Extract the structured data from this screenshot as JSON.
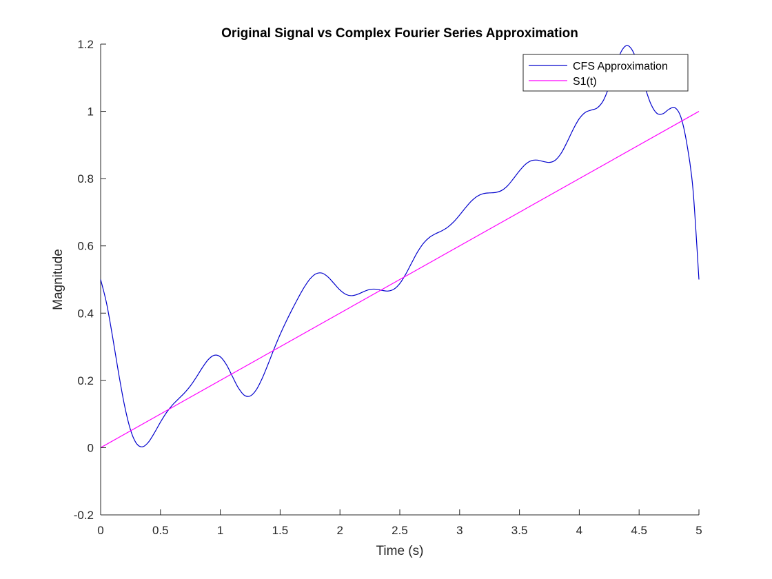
{
  "chart_data": {
    "type": "line",
    "title": "Original Signal vs Complex Fourier Series Approximation",
    "xlabel": "Time (s)",
    "ylabel": "Magnitude",
    "xlim": [
      0,
      5
    ],
    "ylim": [
      -0.2,
      1.2
    ],
    "x_ticks": [
      0,
      0.5,
      1,
      1.5,
      2,
      2.5,
      3,
      3.5,
      4,
      4.5,
      5
    ],
    "x_tick_labels": [
      "0",
      "0.5",
      "1",
      "1.5",
      "2",
      "2.5",
      "3",
      "3.5",
      "4",
      "4.5",
      "5"
    ],
    "y_ticks": [
      -0.2,
      0,
      0.2,
      0.4,
      0.6,
      0.8,
      1,
      1.2
    ],
    "y_tick_labels": [
      "-0.2",
      "0",
      "0.2",
      "0.4",
      "0.6",
      "0.8",
      "1",
      "1.2"
    ],
    "grid": false,
    "legend_position": "top-right",
    "series": [
      {
        "name": "CFS Approximation",
        "color": "#0000cc",
        "x": [
          0,
          0.05,
          0.1,
          0.15,
          0.2,
          0.25,
          0.3,
          0.35,
          0.4,
          0.45,
          0.5,
          0.55,
          0.6,
          0.65,
          0.7,
          0.75,
          0.8,
          0.85,
          0.9,
          0.95,
          1.0,
          1.05,
          1.1,
          1.15,
          1.2,
          1.25,
          1.3,
          1.35,
          1.4,
          1.45,
          1.5,
          1.55,
          1.6,
          1.65,
          1.7,
          1.75,
          1.8,
          1.85,
          1.9,
          1.95,
          2.0,
          2.05,
          2.1,
          2.15,
          2.2,
          2.25,
          2.3,
          2.35,
          2.4,
          2.45,
          2.5,
          2.55,
          2.6,
          2.65,
          2.7,
          2.75,
          2.8,
          2.85,
          2.9,
          2.95,
          3.0,
          3.05,
          3.1,
          3.15,
          3.2,
          3.25,
          3.3,
          3.35,
          3.4,
          3.45,
          3.5,
          3.55,
          3.6,
          3.65,
          3.7,
          3.75,
          3.8,
          3.85,
          3.9,
          3.95,
          4.0,
          4.05,
          4.1,
          4.15,
          4.2,
          4.25,
          4.3,
          4.35,
          4.4,
          4.45,
          4.5,
          4.55,
          4.6,
          4.65,
          4.7,
          4.75,
          4.8,
          4.85,
          4.9,
          4.95,
          5.0
        ],
        "y": [
          0.5,
          0.4284,
          0.3293,
          0.2218,
          0.1248,
          0.0526,
          0.0121,
          0.0024,
          0.0165,
          0.0443,
          0.0758,
          0.1041,
          0.1267,
          0.1448,
          0.1624,
          0.1835,
          0.2096,
          0.2379,
          0.2621,
          0.2748,
          0.2702,
          0.2474,
          0.2127,
          0.1782,
          0.156,
          0.1536,
          0.1716,
          0.2058,
          0.2489,
          0.2941,
          0.3365,
          0.375,
          0.4107,
          0.4447,
          0.4762,
          0.5018,
          0.5172,
          0.519,
          0.5076,
          0.4883,
          0.4688,
          0.4557,
          0.452,
          0.4563,
          0.4643,
          0.4704,
          0.4712,
          0.4678,
          0.4656,
          0.471,
          0.488,
          0.516,
          0.55,
          0.5828,
          0.6087,
          0.6258,
          0.6363,
          0.6445,
          0.6554,
          0.6712,
          0.6917,
          0.7137,
          0.7337,
          0.748,
          0.7555,
          0.7576,
          0.7588,
          0.7645,
          0.7784,
          0.8,
          0.823,
          0.8425,
          0.8535,
          0.855,
          0.8509,
          0.8482,
          0.8549,
          0.8762,
          0.91,
          0.9471,
          0.9783,
          0.9969,
          1.0038,
          1.0103,
          1.0315,
          1.0744,
          1.1303,
          1.1775,
          1.1959,
          1.1774,
          1.1297,
          1.0709,
          1.0206,
          0.9937,
          0.9932,
          1.0063,
          1.0108,
          0.9822,
          0.9016,
          0.7692,
          0.5
        ]
      },
      {
        "name": "S1(t)",
        "color": "#ff00ff",
        "x": [
          0,
          5
        ],
        "y": [
          0,
          1
        ]
      }
    ]
  }
}
